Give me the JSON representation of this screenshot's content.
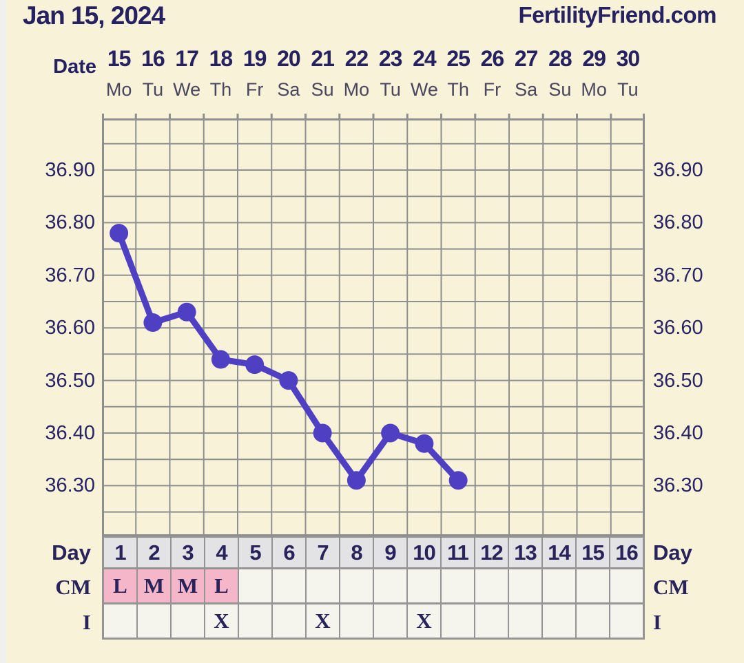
{
  "header": {
    "title": "Jan 15, 2024",
    "site": "FertilityFriend.com"
  },
  "top_axis": {
    "date_label": "Date",
    "dates": [
      "15",
      "16",
      "17",
      "18",
      "19",
      "20",
      "21",
      "22",
      "23",
      "24",
      "25",
      "26",
      "27",
      "28",
      "29",
      "30"
    ],
    "weekdays": [
      "Mo",
      "Tu",
      "We",
      "Th",
      "Fr",
      "Sa",
      "Su",
      "Mo",
      "Tu",
      "We",
      "Th",
      "Fr",
      "Sa",
      "Su",
      "Mo",
      "Tu"
    ]
  },
  "chart_data": {
    "type": "line",
    "x_days": [
      1,
      2,
      3,
      4,
      5,
      6,
      7,
      8,
      9,
      10,
      11
    ],
    "temperatures_celsius": [
      36.78,
      36.61,
      36.63,
      36.54,
      36.53,
      36.5,
      36.4,
      36.31,
      36.4,
      36.38,
      36.31
    ],
    "total_day_columns": 16,
    "yticks": [
      "36.90",
      "36.80",
      "36.70",
      "36.60",
      "36.50",
      "36.40",
      "36.30"
    ],
    "ylim": [
      36.2,
      37.0
    ],
    "ystep": 0.05,
    "grid": true,
    "legend": false
  },
  "table": {
    "left_labels": {
      "day": "Day",
      "cm": "CM",
      "i": "I"
    },
    "right_labels": {
      "day": "Day",
      "cm": "CM",
      "i": "I"
    },
    "days": [
      "1",
      "2",
      "3",
      "4",
      "5",
      "6",
      "7",
      "8",
      "9",
      "10",
      "11",
      "12",
      "13",
      "14",
      "15",
      "16"
    ],
    "cm": [
      "L",
      "M",
      "M",
      "L",
      "",
      "",
      "",
      "",
      "",
      "",
      "",
      "",
      "",
      "",
      "",
      ""
    ],
    "intercourse": [
      "",
      "",
      "",
      "X",
      "",
      "",
      "X",
      "",
      "",
      "X",
      "",
      "",
      "",
      "",
      "",
      ""
    ]
  },
  "colors": {
    "background": "#f7f2d8",
    "line": "#4f40c3",
    "navy_text": "#29235c",
    "weekday_text": "#4a4660",
    "grid": "#8f8f8f",
    "day_cell_bg": "#e3e3e5",
    "empty_cell_bg": "#f5f5ee",
    "cm_highlight_bg": "#f5b6ca"
  }
}
